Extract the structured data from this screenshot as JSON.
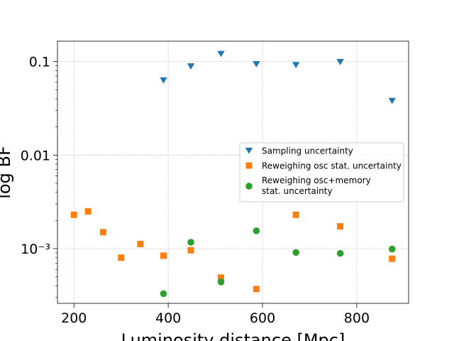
{
  "chart_data": {
    "type": "scatter",
    "xlabel": "Luminosity distance [Mpc]",
    "ylabel": "log BF",
    "xlim": [
      165,
      910
    ],
    "ylim": [
      0.00026,
      0.165
    ],
    "yscale": "log",
    "grid": true,
    "legend_position": "center-right",
    "x_ticks": [
      200,
      400,
      600,
      800
    ],
    "x_tick_labels": [
      "200",
      "400",
      "600",
      "800"
    ],
    "y_ticks": [
      0.001,
      0.01,
      0.1
    ],
    "y_tick_labels": [
      "10⁻³",
      "0.01",
      "0.1"
    ],
    "series": [
      {
        "name": "Sampling uncertainty",
        "marker": "triangle-down",
        "color": "#1f77b4",
        "points": [
          {
            "x": 390,
            "y": 0.063
          },
          {
            "x": 448,
            "y": 0.089
          },
          {
            "x": 512,
            "y": 0.121
          },
          {
            "x": 587,
            "y": 0.094
          },
          {
            "x": 671,
            "y": 0.092
          },
          {
            "x": 765,
            "y": 0.099
          },
          {
            "x": 875,
            "y": 0.038
          }
        ]
      },
      {
        "name": "Reweighing osc stat. uncertainty",
        "marker": "square",
        "color": "#ff7f0e",
        "points": [
          {
            "x": 200,
            "y": 0.0023
          },
          {
            "x": 230,
            "y": 0.0025
          },
          {
            "x": 262,
            "y": 0.0015
          },
          {
            "x": 300,
            "y": 0.0008
          },
          {
            "x": 341,
            "y": 0.00112
          },
          {
            "x": 390,
            "y": 0.00084
          },
          {
            "x": 448,
            "y": 0.00096
          },
          {
            "x": 512,
            "y": 0.00049
          },
          {
            "x": 587,
            "y": 0.00037
          },
          {
            "x": 671,
            "y": 0.0023
          },
          {
            "x": 765,
            "y": 0.00173
          },
          {
            "x": 875,
            "y": 0.00078
          }
        ]
      },
      {
        "name": "Reweighing osc+memory stat. uncertainty",
        "legend_lines": [
          "Reweighing osc+memory",
          "stat. uncertainty"
        ],
        "marker": "circle",
        "color": "#2ca02c",
        "points": [
          {
            "x": 390,
            "y": 0.00033
          },
          {
            "x": 448,
            "y": 0.00117
          },
          {
            "x": 512,
            "y": 0.00044
          },
          {
            "x": 587,
            "y": 0.00155
          },
          {
            "x": 671,
            "y": 0.00091
          },
          {
            "x": 765,
            "y": 0.00089
          },
          {
            "x": 875,
            "y": 0.00099
          }
        ]
      }
    ]
  }
}
